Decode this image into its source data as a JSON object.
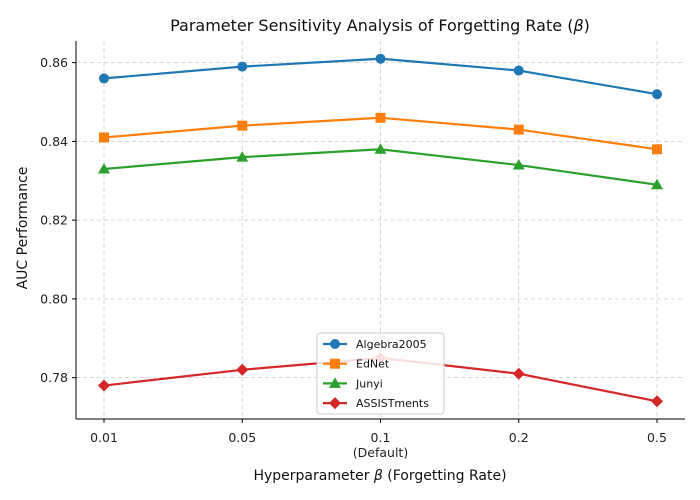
{
  "chart_data": {
    "type": "line",
    "title": "Parameter Sensitivity Analysis of Forgetting Rate (β)",
    "title_parts": {
      "text": "Parameter Sensitivity Analysis of Forgetting Rate (",
      "symbol": "β",
      "close": ")"
    },
    "xlabel": "Hyperparameter β (Forgetting Rate)",
    "xlabel_parts": {
      "before": "Hyperparameter ",
      "symbol": "β",
      "after": " (Forgetting Rate)"
    },
    "ylabel": "AUC Performance",
    "categories": [
      "0.01",
      "0.05",
      "0.1",
      "0.2",
      "0.5"
    ],
    "category_sublabels": [
      "",
      "",
      "(Default)",
      "",
      ""
    ],
    "yticks": [
      "0.78",
      "0.80",
      "0.82",
      "0.84",
      "0.86"
    ],
    "ylim": [
      0.7695,
      0.8655
    ],
    "grid": true,
    "legend_position": "lower center",
    "series": [
      {
        "name": "Algebra2005",
        "color": "#1f77b4",
        "marker": "circle",
        "values": [
          0.856,
          0.859,
          0.861,
          0.858,
          0.852
        ]
      },
      {
        "name": "EdNet",
        "color": "#ff7f0e",
        "marker": "square",
        "values": [
          0.841,
          0.844,
          0.846,
          0.843,
          0.838
        ]
      },
      {
        "name": "Junyi",
        "color": "#2ca02c",
        "marker": "triangle",
        "values": [
          0.833,
          0.836,
          0.838,
          0.834,
          0.829
        ]
      },
      {
        "name": "ASSISTments",
        "color": "#d62728",
        "marker": "diamond",
        "values": [
          0.778,
          0.782,
          0.785,
          0.781,
          0.774
        ]
      }
    ]
  }
}
